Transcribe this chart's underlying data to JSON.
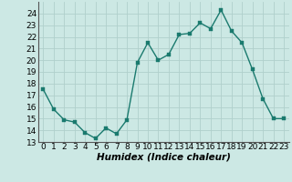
{
  "x": [
    0,
    1,
    2,
    3,
    4,
    5,
    6,
    7,
    8,
    9,
    10,
    11,
    12,
    13,
    14,
    15,
    16,
    17,
    18,
    19,
    20,
    21,
    22,
    23
  ],
  "y": [
    17.5,
    15.8,
    14.9,
    14.7,
    13.8,
    13.3,
    14.2,
    13.7,
    14.9,
    19.8,
    21.5,
    20.0,
    20.5,
    22.2,
    22.3,
    23.2,
    22.7,
    24.3,
    22.5,
    21.5,
    19.2,
    16.7,
    15.0,
    15.0
  ],
  "line_color": "#1a7a6e",
  "marker_color": "#1a7a6e",
  "bg_color": "#cce8e4",
  "grid_color": "#b0d0cc",
  "xlabel": "Humidex (Indice chaleur)",
  "ylim": [
    13,
    25
  ],
  "xlim": [
    -0.5,
    23.5
  ],
  "yticks": [
    13,
    14,
    15,
    16,
    17,
    18,
    19,
    20,
    21,
    22,
    23,
    24
  ],
  "xticks": [
    0,
    1,
    2,
    3,
    4,
    5,
    6,
    7,
    8,
    9,
    10,
    11,
    12,
    13,
    14,
    15,
    16,
    17,
    18,
    19,
    20,
    21,
    22,
    23
  ],
  "tick_fontsize": 6.5,
  "xlabel_fontsize": 7.5,
  "marker_size": 2.5,
  "line_width": 1.0
}
